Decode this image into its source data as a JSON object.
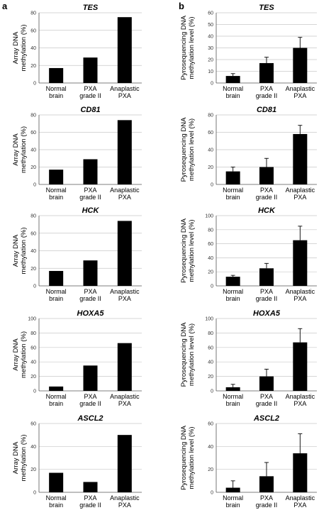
{
  "panel_labels": [
    "a",
    "b"
  ],
  "column_ylabels": {
    "a": [
      "Array DNA",
      "methylation (%)"
    ],
    "b": [
      "Pyrosequencing DNA",
      "methylation level (%)"
    ]
  },
  "chart_data": [
    {
      "id": "a-tes",
      "column": "a",
      "type": "bar",
      "title": "TES",
      "categories": [
        [
          "Normal",
          "brain"
        ],
        [
          "PXA",
          "grade II"
        ],
        [
          "Anaplastic",
          "PXA"
        ]
      ],
      "values": [
        17,
        29,
        75
      ],
      "ylim": [
        0,
        80
      ],
      "yticks": [
        0,
        20,
        40,
        60,
        80
      ],
      "grid": true
    },
    {
      "id": "b-tes",
      "column": "b",
      "type": "bar",
      "title": "TES",
      "categories": [
        [
          "Normal",
          "brain"
        ],
        [
          "PXA",
          "grade II"
        ],
        [
          "Anaplastic",
          "PXA"
        ]
      ],
      "values": [
        6,
        17,
        30
      ],
      "errors": [
        2,
        5,
        9
      ],
      "ylim": [
        0,
        60
      ],
      "yticks": [
        0,
        10,
        20,
        30,
        40,
        50,
        60
      ],
      "grid": true
    },
    {
      "id": "a-cd81",
      "column": "a",
      "type": "bar",
      "title": "CD81",
      "categories": [
        [
          "Normal",
          "brain"
        ],
        [
          "PXA",
          "grade II"
        ],
        [
          "Anaplastic",
          "PXA"
        ]
      ],
      "values": [
        17,
        29,
        74
      ],
      "ylim": [
        0,
        80
      ],
      "yticks": [
        0,
        20,
        40,
        60,
        80
      ],
      "grid": true
    },
    {
      "id": "b-cd81",
      "column": "b",
      "type": "bar",
      "title": "CD81",
      "categories": [
        [
          "Normal",
          "brain"
        ],
        [
          "PXA",
          "grade II"
        ],
        [
          "Anaplastic",
          "PXA"
        ]
      ],
      "values": [
        15,
        20,
        58
      ],
      "errors": [
        5,
        10,
        10
      ],
      "ylim": [
        0,
        80
      ],
      "yticks": [
        0,
        20,
        40,
        60,
        80
      ],
      "grid": true
    },
    {
      "id": "a-hck",
      "column": "a",
      "type": "bar",
      "title": "HCK",
      "categories": [
        [
          "Normal",
          "brain"
        ],
        [
          "PXA",
          "grade II"
        ],
        [
          "Anaplastic",
          "PXA"
        ]
      ],
      "values": [
        17,
        29,
        74
      ],
      "ylim": [
        0,
        80
      ],
      "yticks": [
        0,
        20,
        40,
        60,
        80
      ],
      "grid": true
    },
    {
      "id": "b-hck",
      "column": "b",
      "type": "bar",
      "title": "HCK",
      "categories": [
        [
          "Normal",
          "brain"
        ],
        [
          "PXA",
          "grade II"
        ],
        [
          "Anaplastic",
          "PXA"
        ]
      ],
      "values": [
        13,
        25,
        65
      ],
      "errors": [
        2,
        7,
        20
      ],
      "ylim": [
        0,
        100
      ],
      "yticks": [
        0,
        20,
        40,
        60,
        80,
        100
      ],
      "grid": true
    },
    {
      "id": "a-hoxa5",
      "column": "a",
      "type": "bar",
      "title": "HOXA5",
      "categories": [
        [
          "Normal",
          "brain"
        ],
        [
          "PXA",
          "grade II"
        ],
        [
          "Anaplastic",
          "PXA"
        ]
      ],
      "values": [
        6,
        35,
        66
      ],
      "ylim": [
        0,
        100
      ],
      "yticks": [
        0,
        20,
        40,
        60,
        80,
        100
      ],
      "grid": true
    },
    {
      "id": "b-hoxa5",
      "column": "b",
      "type": "bar",
      "title": "HOXA5",
      "categories": [
        [
          "Normal",
          "brain"
        ],
        [
          "PXA",
          "grade II"
        ],
        [
          "Anaplastic",
          "PXA"
        ]
      ],
      "values": [
        5,
        20,
        67
      ],
      "errors": [
        4,
        10,
        19
      ],
      "ylim": [
        0,
        100
      ],
      "yticks": [
        0,
        20,
        40,
        60,
        80,
        100
      ],
      "grid": true
    },
    {
      "id": "a-ascl2",
      "column": "a",
      "type": "bar",
      "title": "ASCL2",
      "categories": [
        [
          "Normal",
          "brain"
        ],
        [
          "PXA",
          "grade II"
        ],
        [
          "Anaplastic",
          "PXA"
        ]
      ],
      "values": [
        17,
        9,
        50
      ],
      "ylim": [
        0,
        60
      ],
      "yticks": [
        0,
        20,
        40,
        60
      ],
      "grid": true
    },
    {
      "id": "b-ascl2",
      "column": "b",
      "type": "bar",
      "title": "ASCL2",
      "categories": [
        [
          "Normal",
          "brain"
        ],
        [
          "PXA",
          "grade II"
        ],
        [
          "Anaplastic",
          "PXA"
        ]
      ],
      "values": [
        4,
        14,
        34
      ],
      "errors": [
        6,
        12,
        17
      ],
      "ylim": [
        0,
        60
      ],
      "yticks": [
        0,
        20,
        40,
        60
      ],
      "grid": true
    }
  ]
}
